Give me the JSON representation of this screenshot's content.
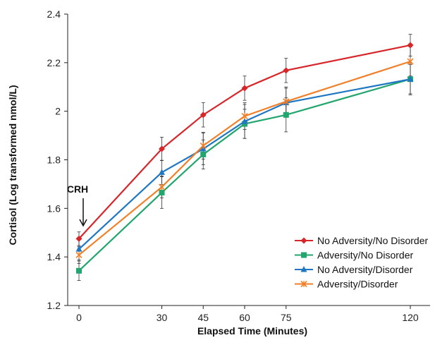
{
  "chart_data": {
    "type": "line",
    "xlabel": "Elapsed Time (Minutes)",
    "ylabel": "Cortisol (Log transformed nmol/L)",
    "x": [
      0,
      30,
      45,
      60,
      75,
      120
    ],
    "x_tick_labels": [
      "0",
      "30",
      "45",
      "60",
      "75",
      "120"
    ],
    "ylim": [
      1.2,
      2.4
    ],
    "y_ticks": [
      1.2,
      1.4,
      1.6,
      1.8,
      2.0,
      2.2,
      2.4
    ],
    "y_tick_labels": [
      "1.2",
      "1.4",
      "1.6",
      "1.8",
      "2",
      "2.2",
      "2.4"
    ],
    "grid": false,
    "legend_position": "bottom-right",
    "annotations": [
      {
        "text": "CRH",
        "x": 0,
        "arrow": true
      }
    ],
    "series": [
      {
        "name": "No Adversity/No Disorder",
        "color": "#d7262a",
        "marker": "diamond",
        "values": [
          1.475,
          1.845,
          1.985,
          2.095,
          2.168,
          2.272
        ],
        "errors": [
          0.028,
          0.048,
          0.05,
          0.05,
          0.05,
          0.045
        ]
      },
      {
        "name": "Adversity/No Disorder",
        "color": "#22a66d",
        "marker": "square",
        "values": [
          1.343,
          1.665,
          1.822,
          1.948,
          1.985,
          2.132
        ],
        "errors": [
          0.04,
          0.065,
          0.06,
          0.06,
          0.07,
          0.065
        ]
      },
      {
        "name": "No Adversity/Disorder",
        "color": "#1f77c4",
        "marker": "triangle",
        "values": [
          1.432,
          1.748,
          1.845,
          1.958,
          2.035,
          2.132
        ],
        "errors": [
          0.045,
          0.05,
          0.065,
          0.07,
          0.06,
          0.06
        ]
      },
      {
        "name": "Adversity/Disorder",
        "color": "#f07f28",
        "marker": "x",
        "values": [
          1.408,
          1.688,
          1.858,
          1.98,
          2.04,
          2.205
        ],
        "errors": [
          0.035,
          0.045,
          0.055,
          0.055,
          0.06,
          0.06
        ]
      }
    ]
  }
}
